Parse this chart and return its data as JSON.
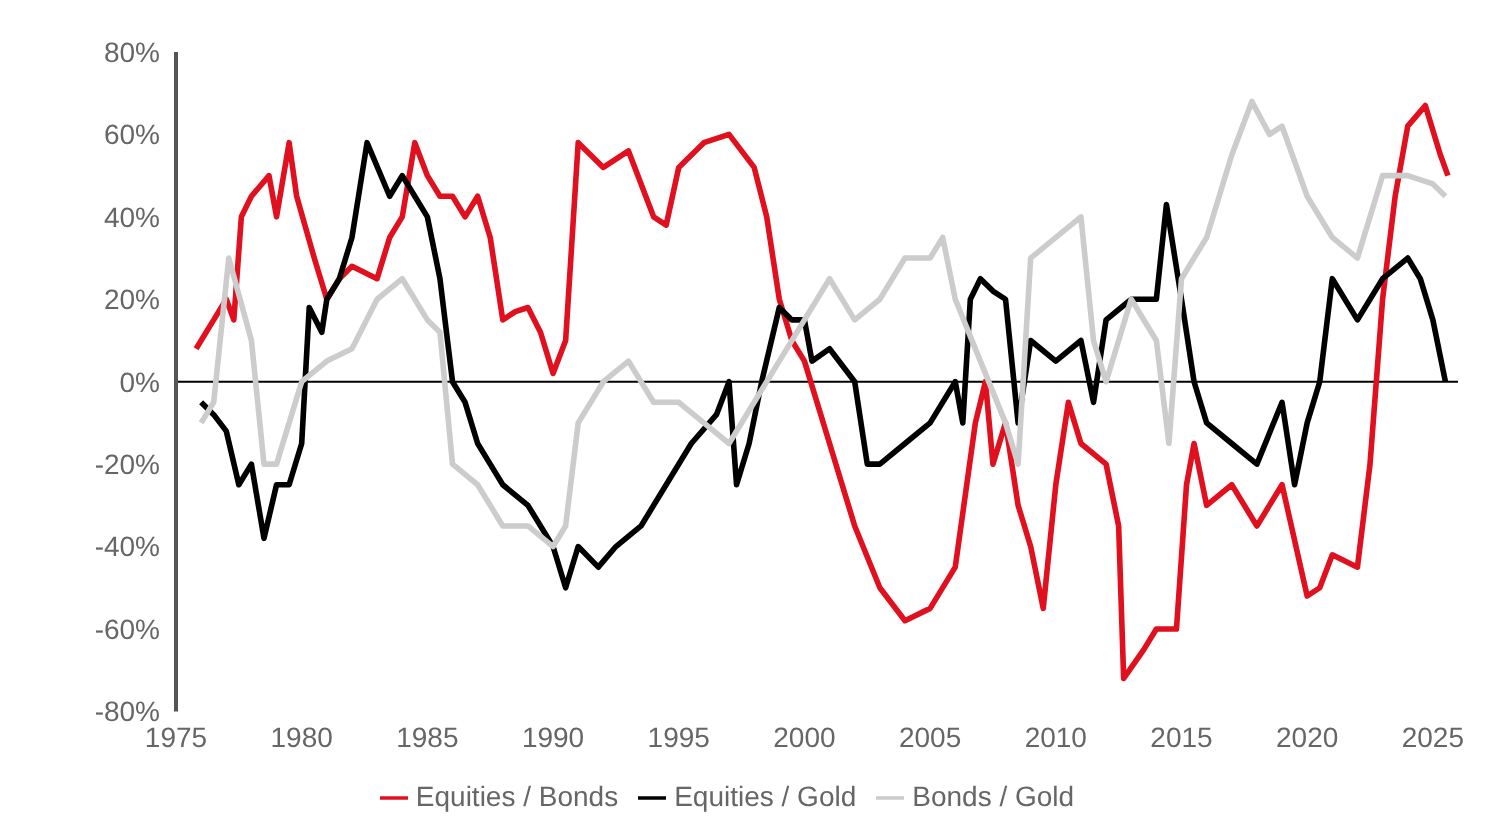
{
  "chart_data": {
    "type": "line",
    "xlim": [
      1975,
      2026
    ],
    "xticks": [
      1975,
      1980,
      1985,
      1990,
      1995,
      2000,
      2005,
      2010,
      2015,
      2020,
      2025
    ],
    "ylim": [
      -80,
      80
    ],
    "yticks": [
      {
        "value": -80,
        "label": "-80%"
      },
      {
        "value": -60,
        "label": "-60%"
      },
      {
        "value": -40,
        "label": "-40%"
      },
      {
        "value": -20,
        "label": "-20%"
      },
      {
        "value": 0,
        "label": "0%"
      },
      {
        "value": 20,
        "label": "20%"
      },
      {
        "value": 40,
        "label": "40%"
      },
      {
        "value": 60,
        "label": "60%"
      },
      {
        "value": 80,
        "label": "80%"
      }
    ],
    "grid": false,
    "legend": "bottom",
    "marker": "none",
    "line_style": "solid",
    "ref_lines": [
      {
        "axis": "y",
        "value": 0,
        "color": "#000000"
      }
    ],
    "series": [
      {
        "name": "Equities / Bonds",
        "color": "#e0101e",
        "x": [
          1975.8,
          1976.5,
          1977,
          1977.3,
          1977.6,
          1978,
          1978.7,
          1979,
          1979.5,
          1979.8,
          1980.5,
          1981,
          1981.5,
          1982,
          1983,
          1983.5,
          1984,
          1984.5,
          1985,
          1985.5,
          1986,
          1986.5,
          1987,
          1987.5,
          1988,
          1988.5,
          1989,
          1989.5,
          1990,
          1990.5,
          1991,
          1992,
          1993,
          1994,
          1994.5,
          1995,
          1996,
          1997,
          1998,
          1998.5,
          1999,
          1999.5,
          2000,
          2001,
          2002,
          2003,
          2004,
          2005,
          2006,
          2006.8,
          2007.2,
          2007.5,
          2008,
          2008.5,
          2009,
          2009.5,
          2010,
          2010.5,
          2011,
          2012,
          2012.5,
          2012.7,
          2013.5,
          2014,
          2014.8,
          2015.2,
          2015.5,
          2016,
          2017,
          2018,
          2019,
          2020,
          2020.5,
          2021,
          2022,
          2022.5,
          2023,
          2023.5,
          2024,
          2024.7,
          2025.3,
          2025.6
        ],
        "values": [
          8,
          15,
          20,
          15,
          40,
          45,
          50,
          40,
          58,
          45,
          30,
          20,
          25,
          28,
          25,
          35,
          40,
          58,
          50,
          45,
          45,
          40,
          45,
          35,
          15,
          17,
          18,
          12,
          2,
          10,
          58,
          52,
          56,
          40,
          38,
          52,
          58,
          60,
          52,
          40,
          20,
          10,
          5,
          -15,
          -35,
          -50,
          -58,
          -55,
          -45,
          -10,
          0,
          -20,
          -10,
          -30,
          -40,
          -55,
          -25,
          -5,
          -15,
          -20,
          -35,
          -72,
          -65,
          -60,
          -60,
          -25,
          -15,
          -30,
          -25,
          -35,
          -25,
          -52,
          -50,
          -42,
          -45,
          -20,
          20,
          45,
          62,
          67,
          55,
          50
        ]
      },
      {
        "name": "Equities / Gold",
        "color": "#000000",
        "x": [
          1976,
          1976.5,
          1977,
          1977.5,
          1978,
          1978.5,
          1979,
          1979.5,
          1980,
          1980.3,
          1980.8,
          1981,
          1981.5,
          1982,
          1982.6,
          1983.5,
          1984,
          1984.5,
          1985,
          1985.5,
          1986,
          1986.5,
          1987,
          1987.5,
          1988,
          1989,
          1990,
          1990.5,
          1991,
          1991.8,
          1992.5,
          1993.5,
          1994.5,
          1995.5,
          1996.5,
          1997,
          1997.3,
          1997.8,
          1998.3,
          1999,
          1999.5,
          2000,
          2000.3,
          2001,
          2002,
          2002.5,
          2003,
          2004,
          2005,
          2006,
          2006.3,
          2006.6,
          2007,
          2007.5,
          2008,
          2008.5,
          2009,
          2010,
          2011,
          2011.5,
          2012,
          2013,
          2014,
          2014.4,
          2015,
          2015.5,
          2016,
          2017,
          2018,
          2019,
          2019.5,
          2020,
          2020.5,
          2021,
          2022,
          2023,
          2024,
          2024.5,
          2025,
          2025.5
        ],
        "values": [
          -5,
          -8,
          -12,
          -25,
          -20,
          -38,
          -25,
          -25,
          -15,
          18,
          12,
          20,
          25,
          35,
          58,
          45,
          50,
          45,
          40,
          25,
          0,
          -5,
          -15,
          -20,
          -25,
          -30,
          -40,
          -50,
          -40,
          -45,
          -40,
          -35,
          -25,
          -15,
          -8,
          0,
          -25,
          -15,
          0,
          18,
          15,
          15,
          5,
          8,
          0,
          -20,
          -20,
          -15,
          -10,
          0,
          -10,
          20,
          25,
          22,
          20,
          -10,
          10,
          5,
          10,
          -5,
          15,
          20,
          20,
          43,
          20,
          0,
          -10,
          -15,
          -20,
          -5,
          -25,
          -10,
          0,
          25,
          15,
          25,
          30,
          25,
          15,
          0
        ]
      },
      {
        "name": "Bonds / Gold",
        "color": "#cccccc",
        "x": [
          1976,
          1976.5,
          1977.1,
          1978,
          1978.5,
          1979,
          1979.5,
          1980,
          1981,
          1982,
          1983,
          1984,
          1985,
          1985.5,
          1986,
          1987,
          1988,
          1989,
          1990,
          1990.5,
          1991,
          1992,
          1993,
          1994,
          1995,
          1996,
          1997,
          1998,
          1999,
          2000,
          2001,
          2002,
          2003,
          2004,
          2005,
          2005.5,
          2006,
          2007,
          2008,
          2008.5,
          2009,
          2010,
          2011,
          2011.5,
          2012,
          2013,
          2014,
          2014.5,
          2015,
          2016,
          2017,
          2017.8,
          2018.5,
          2019,
          2020,
          2021,
          2022,
          2023,
          2024,
          2025,
          2025.5
        ],
        "values": [
          -10,
          -5,
          30,
          10,
          -20,
          -20,
          -10,
          0,
          5,
          8,
          20,
          25,
          15,
          12,
          -20,
          -25,
          -35,
          -35,
          -40,
          -35,
          -10,
          0,
          5,
          -5,
          -5,
          -10,
          -15,
          -5,
          5,
          15,
          25,
          15,
          20,
          30,
          30,
          35,
          20,
          5,
          -10,
          -20,
          30,
          35,
          40,
          10,
          0,
          20,
          10,
          -15,
          25,
          35,
          55,
          68,
          60,
          62,
          45,
          35,
          30,
          50,
          50,
          48,
          45
        ]
      }
    ]
  }
}
